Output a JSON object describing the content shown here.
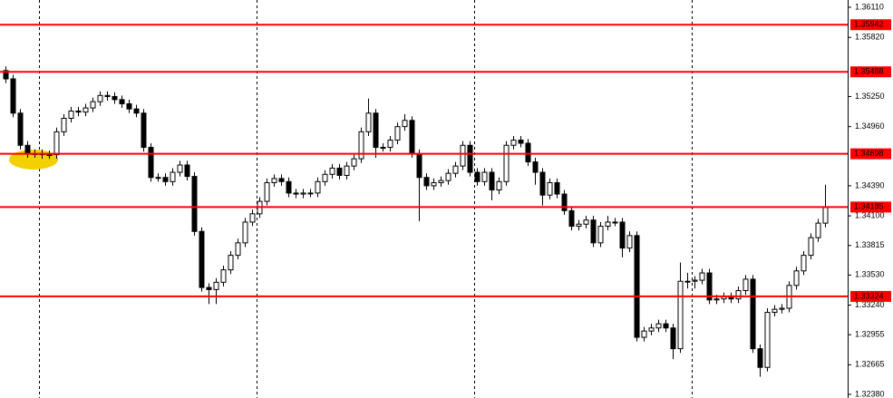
{
  "chart_data": {
    "type": "candlestick",
    "ylim": [
      1.32345,
      1.3618
    ],
    "yticks": [
      {
        "value": 1.3611,
        "label": "1.36110"
      },
      {
        "value": 1.3582,
        "label": "1.35820"
      },
      {
        "value": 1.3525,
        "label": "1.35250"
      },
      {
        "value": 1.3496,
        "label": "1.34960"
      },
      {
        "value": 1.3439,
        "label": "1.34390"
      },
      {
        "value": 1.341,
        "label": "1.34100"
      },
      1.33815,
      {
        "value": 1.3353,
        "label": "1.33530"
      },
      {
        "value": 1.3324,
        "label": "1.33240"
      },
      1.32955,
      1.32665,
      {
        "value": 1.3238,
        "label": "1.32380"
      }
    ],
    "levels": [
      1.35942,
      1.35488,
      1.34698,
      1.34185,
      1.33324
    ],
    "level_color": "#ff0000",
    "open": [
      1.355,
      1.3542,
      1.3509,
      1.3478,
      1.347,
      1.347,
      1.3469,
      1.3469,
      1.3491,
      1.3504,
      1.3511,
      1.351,
      1.3514,
      1.352,
      1.3526,
      1.3525,
      1.3522,
      1.3518,
      1.3513,
      1.3509,
      1.3476,
      1.3447,
      1.3447,
      1.3443,
      1.3452,
      1.3459,
      1.3448,
      1.3395,
      1.3341,
      1.3339,
      1.3346,
      1.3358,
      1.3372,
      1.3384,
      1.3404,
      1.3412,
      1.3424,
      1.3442,
      1.3446,
      1.3443,
      1.3432,
      1.3431,
      1.3432,
      1.3432,
      1.3443,
      1.345,
      1.3456,
      1.3449,
      1.3458,
      1.3465,
      1.3491,
      1.3509,
      1.3476,
      1.3476,
      1.3483,
      1.3496,
      1.3502,
      1.347,
      1.3447,
      1.3439,
      1.3442,
      1.3444,
      1.3451,
      1.3458,
      1.3478,
      1.3452,
      1.3443,
      1.3452,
      1.3435,
      1.3443,
      1.3478,
      1.3483,
      1.348,
      1.3462,
      1.3452,
      1.343,
      1.3442,
      1.3431,
      1.3415,
      1.34,
      1.3402,
      1.3406,
      1.3384,
      1.34,
      1.3404,
      1.3404,
      1.3379,
      1.3391,
      1.3293,
      1.3299,
      1.3302,
      1.3306,
      1.3302,
      1.3282,
      1.3347,
      1.3347,
      1.3348,
      1.3355,
      1.3329,
      1.333,
      1.3332,
      1.333,
      1.3338,
      1.3349,
      1.3282,
      1.3264,
      1.3317,
      1.332,
      1.3321,
      1.3343,
      1.3357,
      1.3372,
      1.3389,
      1.3403
    ],
    "high": [
      1.3554,
      1.3546,
      1.3513,
      1.3482,
      1.3474,
      1.3474,
      1.3473,
      1.3495,
      1.3508,
      1.3515,
      1.3515,
      1.3518,
      1.3524,
      1.353,
      1.353,
      1.3529,
      1.3526,
      1.3522,
      1.3517,
      1.3513,
      1.348,
      1.3451,
      1.3451,
      1.3456,
      1.3463,
      1.3463,
      1.3452,
      1.3399,
      1.3345,
      1.335,
      1.3362,
      1.3376,
      1.3388,
      1.3408,
      1.3416,
      1.3428,
      1.3446,
      1.345,
      1.345,
      1.3447,
      1.3436,
      1.3436,
      1.3436,
      1.3447,
      1.3454,
      1.346,
      1.346,
      1.3462,
      1.3469,
      1.3495,
      1.3523,
      1.3513,
      1.348,
      1.3487,
      1.35,
      1.3508,
      1.3506,
      1.3474,
      1.3451,
      1.3446,
      1.3448,
      1.3455,
      1.3462,
      1.3482,
      1.3482,
      1.3456,
      1.3456,
      1.3456,
      1.3447,
      1.3482,
      1.3487,
      1.3487,
      1.3484,
      1.3466,
      1.3456,
      1.3446,
      1.3446,
      1.3435,
      1.3419,
      1.3406,
      1.341,
      1.341,
      1.3404,
      1.341,
      1.3408,
      1.3408,
      1.3395,
      1.3395,
      1.3303,
      1.3306,
      1.331,
      1.331,
      1.3306,
      1.3365,
      1.3355,
      1.3352,
      1.3359,
      1.3359,
      1.3334,
      1.3336,
      1.3336,
      1.3342,
      1.3353,
      1.3353,
      1.3286,
      1.3321,
      1.3324,
      1.3325,
      1.3347,
      1.3361,
      1.3376,
      1.3393,
      1.3407,
      1.344
    ],
    "low": [
      1.3538,
      1.3505,
      1.3474,
      1.3466,
      1.3466,
      1.3465,
      1.3465,
      1.3465,
      1.3487,
      1.35,
      1.3506,
      1.3506,
      1.351,
      1.3516,
      1.3521,
      1.3518,
      1.3514,
      1.3509,
      1.3505,
      1.3472,
      1.3443,
      1.3443,
      1.3439,
      1.3439,
      1.3448,
      1.3444,
      1.3391,
      1.3337,
      1.3325,
      1.3325,
      1.3342,
      1.3354,
      1.3368,
      1.338,
      1.34,
      1.3408,
      1.342,
      1.3438,
      1.3439,
      1.3428,
      1.3427,
      1.3427,
      1.3428,
      1.3428,
      1.3439,
      1.3446,
      1.3445,
      1.3445,
      1.3454,
      1.3461,
      1.3487,
      1.3466,
      1.3472,
      1.3472,
      1.3479,
      1.3492,
      1.3466,
      1.3405,
      1.3435,
      1.3435,
      1.3438,
      1.344,
      1.3447,
      1.3454,
      1.3448,
      1.3439,
      1.3439,
      1.3425,
      1.3431,
      1.3439,
      1.3474,
      1.3476,
      1.3458,
      1.344,
      1.342,
      1.3426,
      1.3427,
      1.3411,
      1.3396,
      1.3396,
      1.3398,
      1.338,
      1.338,
      1.3396,
      1.34,
      1.337,
      1.3375,
      1.3289,
      1.3289,
      1.3295,
      1.3298,
      1.3298,
      1.3272,
      1.3278,
      1.334,
      1.334,
      1.3344,
      1.3325,
      1.3325,
      1.3326,
      1.3326,
      1.3326,
      1.3334,
      1.3278,
      1.3255,
      1.326,
      1.3313,
      1.3316,
      1.3317,
      1.3339,
      1.3353,
      1.3368,
      1.3385,
      1.3399
    ],
    "close": [
      1.3542,
      1.3509,
      1.3478,
      1.347,
      1.347,
      1.3469,
      1.3469,
      1.3491,
      1.3504,
      1.3511,
      1.351,
      1.3514,
      1.352,
      1.3526,
      1.3525,
      1.3522,
      1.3518,
      1.3513,
      1.3509,
      1.3476,
      1.3447,
      1.3447,
      1.3443,
      1.3452,
      1.3459,
      1.3448,
      1.3395,
      1.3341,
      1.3339,
      1.3346,
      1.3358,
      1.3372,
      1.3384,
      1.3404,
      1.3412,
      1.3424,
      1.3442,
      1.3446,
      1.3443,
      1.3432,
      1.3431,
      1.3432,
      1.3432,
      1.3443,
      1.345,
      1.3456,
      1.3449,
      1.3458,
      1.3465,
      1.3491,
      1.3509,
      1.3476,
      1.3476,
      1.3483,
      1.3496,
      1.3502,
      1.347,
      1.3447,
      1.3439,
      1.3442,
      1.3444,
      1.3451,
      1.3458,
      1.3478,
      1.3452,
      1.3443,
      1.3452,
      1.3435,
      1.3443,
      1.3478,
      1.3483,
      1.348,
      1.3462,
      1.3452,
      1.343,
      1.3442,
      1.3431,
      1.3415,
      1.34,
      1.3402,
      1.3406,
      1.3384,
      1.34,
      1.3404,
      1.3404,
      1.3379,
      1.3391,
      1.3293,
      1.3299,
      1.3302,
      1.3306,
      1.3302,
      1.3282,
      1.3347,
      1.3347,
      1.3348,
      1.3355,
      1.3329,
      1.333,
      1.3332,
      1.333,
      1.3338,
      1.3349,
      1.3282,
      1.3264,
      1.3317,
      1.332,
      1.3321,
      1.3343,
      1.3357,
      1.3372,
      1.3389,
      1.3403,
      1.3418
    ]
  }
}
